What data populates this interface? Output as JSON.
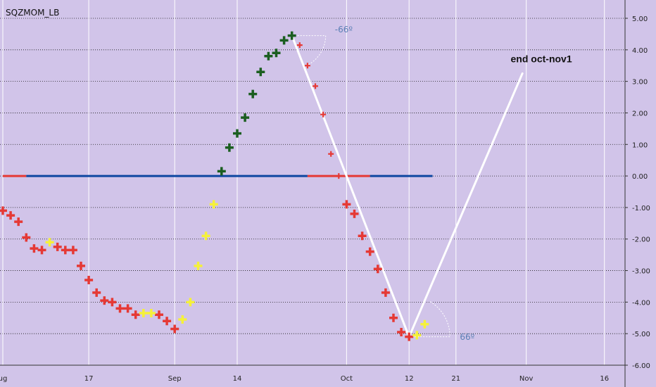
{
  "chart_data": {
    "type": "scatter",
    "title": "SQZMOM_LB",
    "ylim": [
      -6,
      5
    ],
    "yticks": [
      "5.00",
      "4.00",
      "3.00",
      "2.00",
      "1.00",
      "0.00",
      "-1.00",
      "-2.00",
      "-3.00",
      "-4.00",
      "-5.00",
      "-6.00"
    ],
    "ytick_values": [
      5,
      4,
      3,
      2,
      1,
      0,
      -1,
      -2,
      -3,
      -4,
      -5,
      -6
    ],
    "xlim": [
      0,
      82
    ],
    "xticks": [
      {
        "label": "ug",
        "x": 0
      },
      {
        "label": "17",
        "x": 11
      },
      {
        "label": "Sep",
        "x": 22
      },
      {
        "label": "14",
        "x": 30
      },
      {
        "label": "Oct",
        "x": 44
      },
      {
        "label": "12",
        "x": 52
      },
      {
        "label": "21",
        "x": 58
      },
      {
        "label": "Nov",
        "x": 67
      },
      {
        "label": "16",
        "x": 77
      }
    ],
    "grid": true,
    "colors": {
      "background": "#d1c4e9",
      "red": "#e53935",
      "yellow": "#f5f13a",
      "dark_green": "#1b5e20",
      "blue_line": "#0d47a1",
      "red_line": "#e53935",
      "grid": "#1a1a1a",
      "annotation_line": "#ffffff",
      "degree_text": "#5b7fb5"
    },
    "series": [
      {
        "color_key": "red",
        "marker": "plus",
        "points": [
          [
            0,
            -1.1
          ],
          [
            1,
            -1.25
          ],
          [
            2,
            -1.45
          ],
          [
            3,
            -1.95
          ],
          [
            4,
            -2.3
          ],
          [
            5,
            -2.35
          ],
          [
            7,
            -2.25
          ],
          [
            8,
            -2.35
          ],
          [
            9,
            -2.35
          ],
          [
            10,
            -2.85
          ],
          [
            11,
            -3.3
          ],
          [
            12,
            -3.7
          ],
          [
            13,
            -3.95
          ],
          [
            14,
            -4.0
          ],
          [
            15,
            -4.2
          ],
          [
            16,
            -4.2
          ],
          [
            17,
            -4.4
          ],
          [
            20,
            -4.4
          ],
          [
            21,
            -4.6
          ],
          [
            22,
            -4.85
          ]
        ]
      },
      {
        "color_key": "yellow",
        "marker": "plus",
        "points": [
          [
            6,
            -2.1
          ],
          [
            18,
            -4.35
          ],
          [
            19,
            -4.35
          ],
          [
            23,
            -4.55
          ],
          [
            24,
            -4.0
          ],
          [
            25,
            -2.85
          ],
          [
            26,
            -1.9
          ],
          [
            27,
            -0.9
          ]
        ]
      },
      {
        "color_key": "dark_green",
        "marker": "plus",
        "points": [
          [
            28,
            0.15
          ],
          [
            29,
            0.9
          ],
          [
            30,
            1.35
          ],
          [
            31,
            1.85
          ],
          [
            32,
            2.6
          ],
          [
            33,
            3.3
          ],
          [
            34,
            3.8
          ],
          [
            35,
            3.9
          ],
          [
            36,
            4.3
          ],
          [
            37,
            4.45
          ]
        ]
      },
      {
        "color_key": "red",
        "marker": "plus_small",
        "points": [
          [
            38,
            4.15
          ],
          [
            39,
            3.5
          ],
          [
            40,
            2.85
          ],
          [
            41,
            1.95
          ],
          [
            42,
            0.7
          ],
          [
            43,
            0.0
          ]
        ]
      },
      {
        "color_key": "red",
        "marker": "plus",
        "points": [
          [
            44,
            -0.9
          ],
          [
            45,
            -1.2
          ],
          [
            46,
            -1.9
          ],
          [
            47,
            -2.4
          ],
          [
            48,
            -2.95
          ],
          [
            49,
            -3.7
          ],
          [
            50,
            -4.5
          ],
          [
            51,
            -4.95
          ],
          [
            52,
            -5.1
          ]
        ]
      },
      {
        "color_key": "yellow",
        "marker": "plus",
        "points": [
          [
            53,
            -5.05
          ],
          [
            54,
            -4.7
          ]
        ]
      }
    ],
    "zero_line_segments": [
      {
        "color_key": "red_line",
        "x0": 0,
        "x1": 3
      },
      {
        "color_key": "blue_line",
        "x0": 3,
        "x1": 39
      },
      {
        "color_key": "red_line",
        "x0": 39,
        "x1": 47
      },
      {
        "color_key": "blue_line",
        "x0": 47,
        "x1": 55
      }
    ],
    "trend_lines": [
      {
        "points": [
          [
            37,
            4.45
          ],
          [
            52,
            -5.1
          ]
        ]
      },
      {
        "points": [
          [
            52,
            -5.1
          ],
          [
            66.5,
            3.25
          ]
        ]
      }
    ],
    "annotations": [
      {
        "text": "end oct-nov1",
        "x": 65,
        "y": 3.6
      },
      {
        "text": "-66º",
        "x": 42.5,
        "y": 4.55,
        "kind": "degree"
      },
      {
        "text": "66º",
        "x": 58.5,
        "y": -5.2,
        "kind": "degree"
      }
    ]
  }
}
